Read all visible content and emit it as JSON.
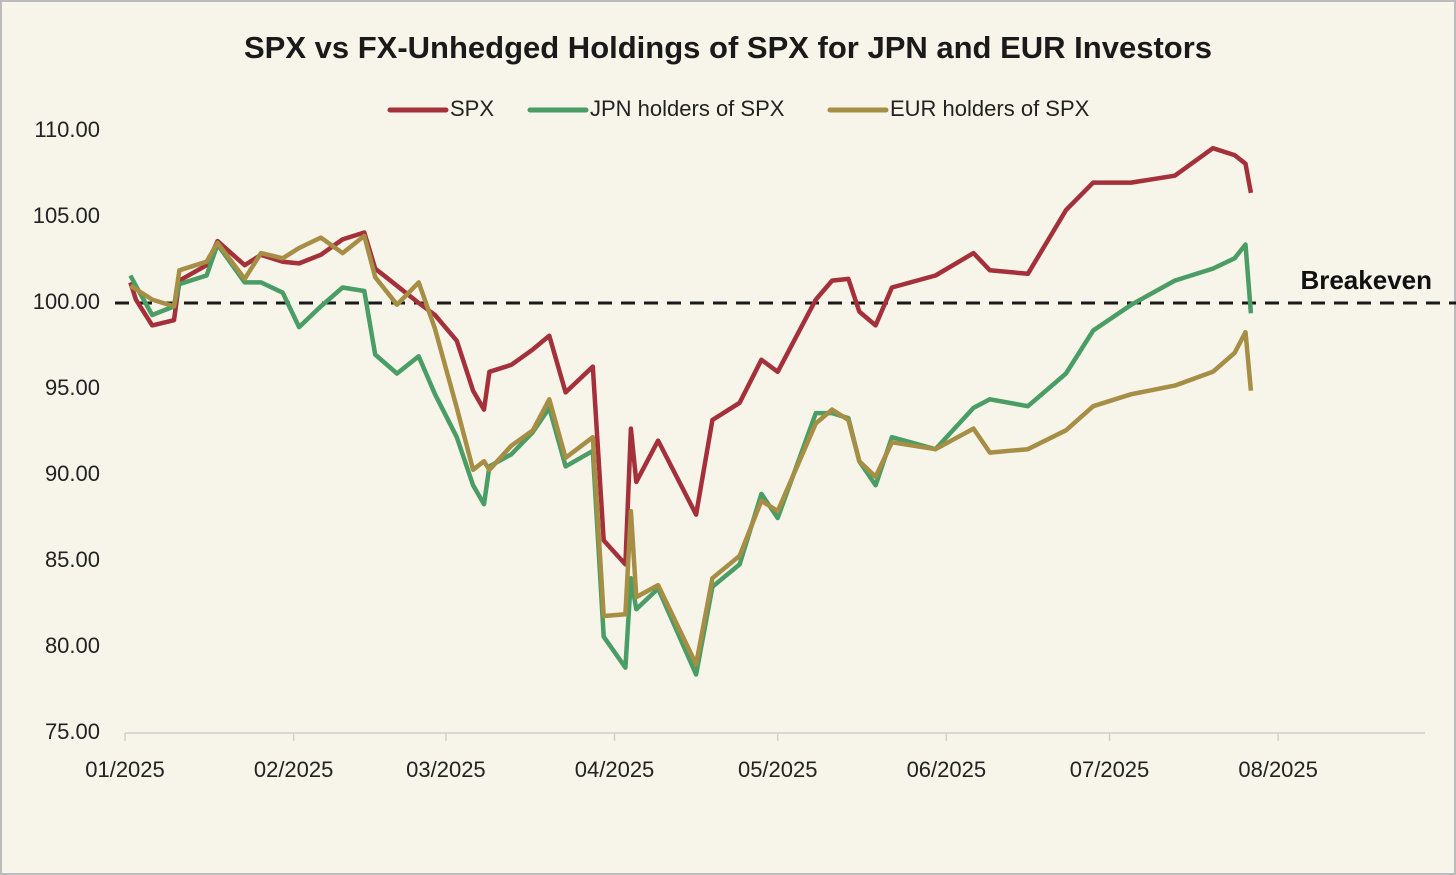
{
  "chart_data": {
    "type": "line",
    "title": "SPX vs FX-Unhedged Holdings of SPX for JPN and EUR Investors",
    "x": [
      1,
      2,
      5,
      9,
      10,
      15,
      17,
      22,
      25,
      29,
      32,
      36,
      40,
      44,
      46,
      50,
      54,
      57,
      61,
      64,
      66,
      67,
      71,
      75,
      78,
      81,
      86,
      88,
      92,
      93,
      94,
      98,
      105,
      108,
      113,
      117,
      120,
      127,
      130,
      133,
      135,
      138,
      141,
      149,
      156,
      159,
      166,
      173,
      178,
      185,
      193,
      200,
      204,
      206,
      207
    ],
    "series": [
      {
        "name": "SPX",
        "color": "#a4303a",
        "values": [
          101.2,
          100.2,
          98.7,
          99.0,
          101.3,
          102.2,
          103.6,
          102.2,
          102.8,
          102.4,
          102.3,
          102.8,
          103.7,
          104.1,
          102.0,
          101.0,
          100.0,
          99.3,
          97.8,
          94.9,
          93.8,
          96.0,
          96.4,
          97.3,
          98.1,
          94.8,
          96.3,
          86.2,
          84.8,
          92.7,
          89.6,
          92.0,
          87.7,
          93.2,
          94.2,
          96.7,
          96.0,
          100.2,
          101.3,
          101.4,
          99.5,
          98.7,
          100.9,
          101.6,
          102.9,
          101.9,
          101.7,
          105.4,
          107.0,
          107.0,
          107.4,
          109.0,
          108.6,
          108.1,
          106.4
        ]
      },
      {
        "name": "JPN holders of SPX",
        "color": "#4a9d64",
        "values": [
          101.6,
          101.0,
          99.3,
          99.8,
          101.1,
          101.6,
          103.4,
          101.2,
          101.2,
          100.6,
          98.6,
          99.8,
          100.9,
          100.7,
          97.0,
          95.9,
          96.9,
          94.7,
          92.2,
          89.4,
          88.3,
          90.5,
          91.2,
          92.5,
          93.9,
          90.5,
          91.4,
          80.6,
          78.8,
          84.0,
          82.2,
          83.4,
          78.4,
          83.5,
          84.8,
          88.9,
          87.5,
          93.6,
          93.6,
          93.3,
          90.8,
          89.4,
          92.2,
          91.5,
          93.9,
          94.4,
          94.0,
          95.9,
          98.4,
          99.9,
          101.3,
          102.0,
          102.6,
          103.4,
          99.4
        ]
      },
      {
        "name": "EUR holders of SPX",
        "color": "#a68e45",
        "values": [
          101.0,
          100.8,
          100.2,
          99.8,
          101.9,
          102.4,
          103.5,
          101.4,
          102.9,
          102.6,
          103.2,
          103.8,
          102.9,
          103.9,
          101.5,
          99.9,
          101.2,
          98.5,
          93.9,
          90.3,
          90.8,
          90.3,
          91.7,
          92.6,
          94.4,
          91.0,
          92.2,
          81.8,
          81.9,
          87.9,
          82.9,
          83.6,
          79.0,
          84.0,
          85.3,
          88.5,
          87.9,
          93.0,
          93.8,
          93.2,
          90.8,
          89.9,
          91.9,
          91.5,
          92.7,
          91.3,
          91.5,
          92.6,
          94.0,
          94.7,
          95.2,
          96.0,
          97.1,
          98.3,
          94.9
        ]
      }
    ],
    "xlim": [
      0,
      239
    ],
    "xticks": [
      {
        "value": 0,
        "label": "01/2025"
      },
      {
        "value": 31,
        "label": "02/2025"
      },
      {
        "value": 59,
        "label": "03/2025"
      },
      {
        "value": 90,
        "label": "04/2025"
      },
      {
        "value": 120,
        "label": "05/2025"
      },
      {
        "value": 151,
        "label": "06/2025"
      },
      {
        "value": 181,
        "label": "07/2025"
      },
      {
        "value": 212,
        "label": "08/2025"
      }
    ],
    "ylim": [
      75,
      110
    ],
    "yticks": [
      {
        "value": 75,
        "label": "75.00"
      },
      {
        "value": 80,
        "label": "80.00"
      },
      {
        "value": 85,
        "label": "85.00"
      },
      {
        "value": 90,
        "label": "90.00"
      },
      {
        "value": 95,
        "label": "95.00"
      },
      {
        "value": 100,
        "label": "100.00"
      },
      {
        "value": 105,
        "label": "105.00"
      },
      {
        "value": 110,
        "label": "110.00"
      }
    ],
    "reference_line": {
      "value": 100,
      "label": "Breakeven"
    },
    "grid": false,
    "legend": "top"
  }
}
